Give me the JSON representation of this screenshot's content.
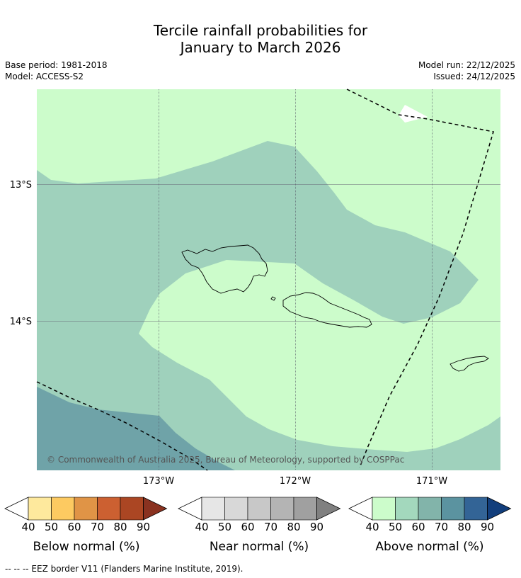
{
  "title_line1": "Tercile rainfall probabilities for",
  "title_line2": "January to March 2026",
  "base_period": "Base period: 1981-2018",
  "model": "Model: ACCESS-S2",
  "model_run": "Model run: 22/12/2025",
  "issued": "Issued: 24/12/2025",
  "copyright": "© Commonwealth of Australia 2025, Bureau of Meteorology, supported by COSPPac",
  "map": {
    "lat_labels": [
      "13°S",
      "14°S"
    ],
    "lon_labels": [
      "173°W",
      "172°W",
      "171°W"
    ],
    "category_colors": {
      "above_40_50": "#ccfccb",
      "above_50_60": "#9fd1bc",
      "above_60_70": "#6fa3a8"
    }
  },
  "colorbars": [
    {
      "label": "Below normal (%)",
      "ticks": [
        "40",
        "50",
        "60",
        "70",
        "80",
        "90"
      ],
      "colors": [
        "#ffffff",
        "#fee99d",
        "#fdca61",
        "#e09446",
        "#cc6031",
        "#ab4623",
        "#8a3220"
      ]
    },
    {
      "label": "Near normal (%)",
      "ticks": [
        "40",
        "50",
        "60",
        "70",
        "80",
        "90"
      ],
      "colors": [
        "#ffffff",
        "#e6e6e6",
        "#d8d8d8",
        "#c8c8c8",
        "#b4b4b4",
        "#a0a0a0",
        "#808080"
      ]
    },
    {
      "label": "Above normal (%)",
      "ticks": [
        "40",
        "50",
        "60",
        "70",
        "80",
        "90"
      ],
      "colors": [
        "#ffffff",
        "#ccfccb",
        "#a3d8bd",
        "#82b4aa",
        "#5b93a0",
        "#336496",
        "#123e7c"
      ]
    }
  ],
  "footnote": "--  --  -- EEZ border V11 (Flanders Marine Institute, 2019)."
}
